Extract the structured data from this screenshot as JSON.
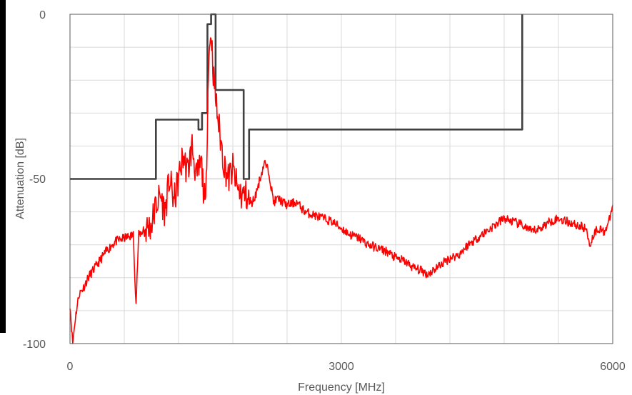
{
  "chart_data": {
    "type": "line",
    "title": "",
    "xlabel": "Frequency [MHz]",
    "ylabel": "Attenuation [dB]",
    "xlim": [
      0,
      6000
    ],
    "ylim": [
      -100,
      0
    ],
    "x_ticks": [
      0,
      3000,
      6000
    ],
    "y_ticks": [
      0,
      -50,
      -100
    ],
    "x_tick_labels": [
      "0",
      "3000",
      "6000"
    ],
    "y_tick_labels": [
      "0",
      "-50",
      "-100"
    ],
    "grid": true,
    "legend": "none",
    "series": [
      {
        "color": "#404040",
        "style": "step",
        "points": [
          [
            0,
            -50
          ],
          [
            950,
            -50
          ],
          [
            950,
            -32
          ],
          [
            1420,
            -32
          ],
          [
            1420,
            -35
          ],
          [
            1460,
            -35
          ],
          [
            1460,
            -30
          ],
          [
            1520,
            -30
          ],
          [
            1520,
            -3
          ],
          [
            1560,
            -3
          ],
          [
            1560,
            0
          ],
          [
            1610,
            0
          ],
          [
            1610,
            -23
          ],
          [
            1920,
            -23
          ],
          [
            1920,
            -50
          ],
          [
            1980,
            -50
          ],
          [
            1980,
            -35
          ],
          [
            5000,
            -35
          ],
          [
            5000,
            0
          ]
        ]
      },
      {
        "color": "#ff0000",
        "style": "noisy",
        "points": [
          [
            0,
            -88
          ],
          [
            30,
            -100
          ],
          [
            60,
            -92
          ],
          [
            100,
            -85
          ],
          [
            150,
            -83
          ],
          [
            200,
            -80
          ],
          [
            300,
            -76
          ],
          [
            400,
            -72
          ],
          [
            500,
            -69
          ],
          [
            600,
            -68
          ],
          [
            700,
            -67
          ],
          [
            730,
            -88
          ],
          [
            760,
            -67
          ],
          [
            800,
            -66
          ],
          [
            900,
            -64
          ],
          [
            950,
            -58
          ],
          [
            1000,
            -55
          ],
          [
            1050,
            -60
          ],
          [
            1100,
            -50
          ],
          [
            1150,
            -57
          ],
          [
            1200,
            -50
          ],
          [
            1250,
            -43
          ],
          [
            1300,
            -48
          ],
          [
            1350,
            -40
          ],
          [
            1400,
            -50
          ],
          [
            1450,
            -45
          ],
          [
            1500,
            -60
          ],
          [
            1530,
            -15
          ],
          [
            1560,
            -5
          ],
          [
            1590,
            -20
          ],
          [
            1620,
            -28
          ],
          [
            1650,
            -35
          ],
          [
            1700,
            -45
          ],
          [
            1750,
            -50
          ],
          [
            1800,
            -47
          ],
          [
            1850,
            -53
          ],
          [
            1900,
            -55
          ],
          [
            1950,
            -55
          ],
          [
            2000,
            -58
          ],
          [
            2050,
            -55
          ],
          [
            2100,
            -50
          ],
          [
            2150,
            -45
          ],
          [
            2200,
            -48
          ],
          [
            2250,
            -57
          ],
          [
            2300,
            -56
          ],
          [
            2400,
            -58
          ],
          [
            2500,
            -57
          ],
          [
            2600,
            -60
          ],
          [
            2700,
            -61
          ],
          [
            2800,
            -62
          ],
          [
            2900,
            -63
          ],
          [
            3000,
            -65
          ],
          [
            3100,
            -67
          ],
          [
            3200,
            -68
          ],
          [
            3300,
            -70
          ],
          [
            3400,
            -71
          ],
          [
            3500,
            -72
          ],
          [
            3600,
            -74
          ],
          [
            3700,
            -75
          ],
          [
            3800,
            -77
          ],
          [
            3900,
            -78
          ],
          [
            3950,
            -79
          ],
          [
            4000,
            -78
          ],
          [
            4100,
            -76
          ],
          [
            4200,
            -74
          ],
          [
            4300,
            -73
          ],
          [
            4400,
            -70
          ],
          [
            4500,
            -68
          ],
          [
            4600,
            -66
          ],
          [
            4700,
            -64
          ],
          [
            4800,
            -62
          ],
          [
            4900,
            -63
          ],
          [
            5000,
            -64
          ],
          [
            5100,
            -66
          ],
          [
            5200,
            -65
          ],
          [
            5300,
            -63
          ],
          [
            5400,
            -62
          ],
          [
            5500,
            -63
          ],
          [
            5600,
            -64
          ],
          [
            5700,
            -65
          ],
          [
            5750,
            -70
          ],
          [
            5800,
            -66
          ],
          [
            5850,
            -65
          ],
          [
            5900,
            -66
          ],
          [
            5950,
            -64
          ],
          [
            6000,
            -58
          ]
        ]
      }
    ]
  }
}
